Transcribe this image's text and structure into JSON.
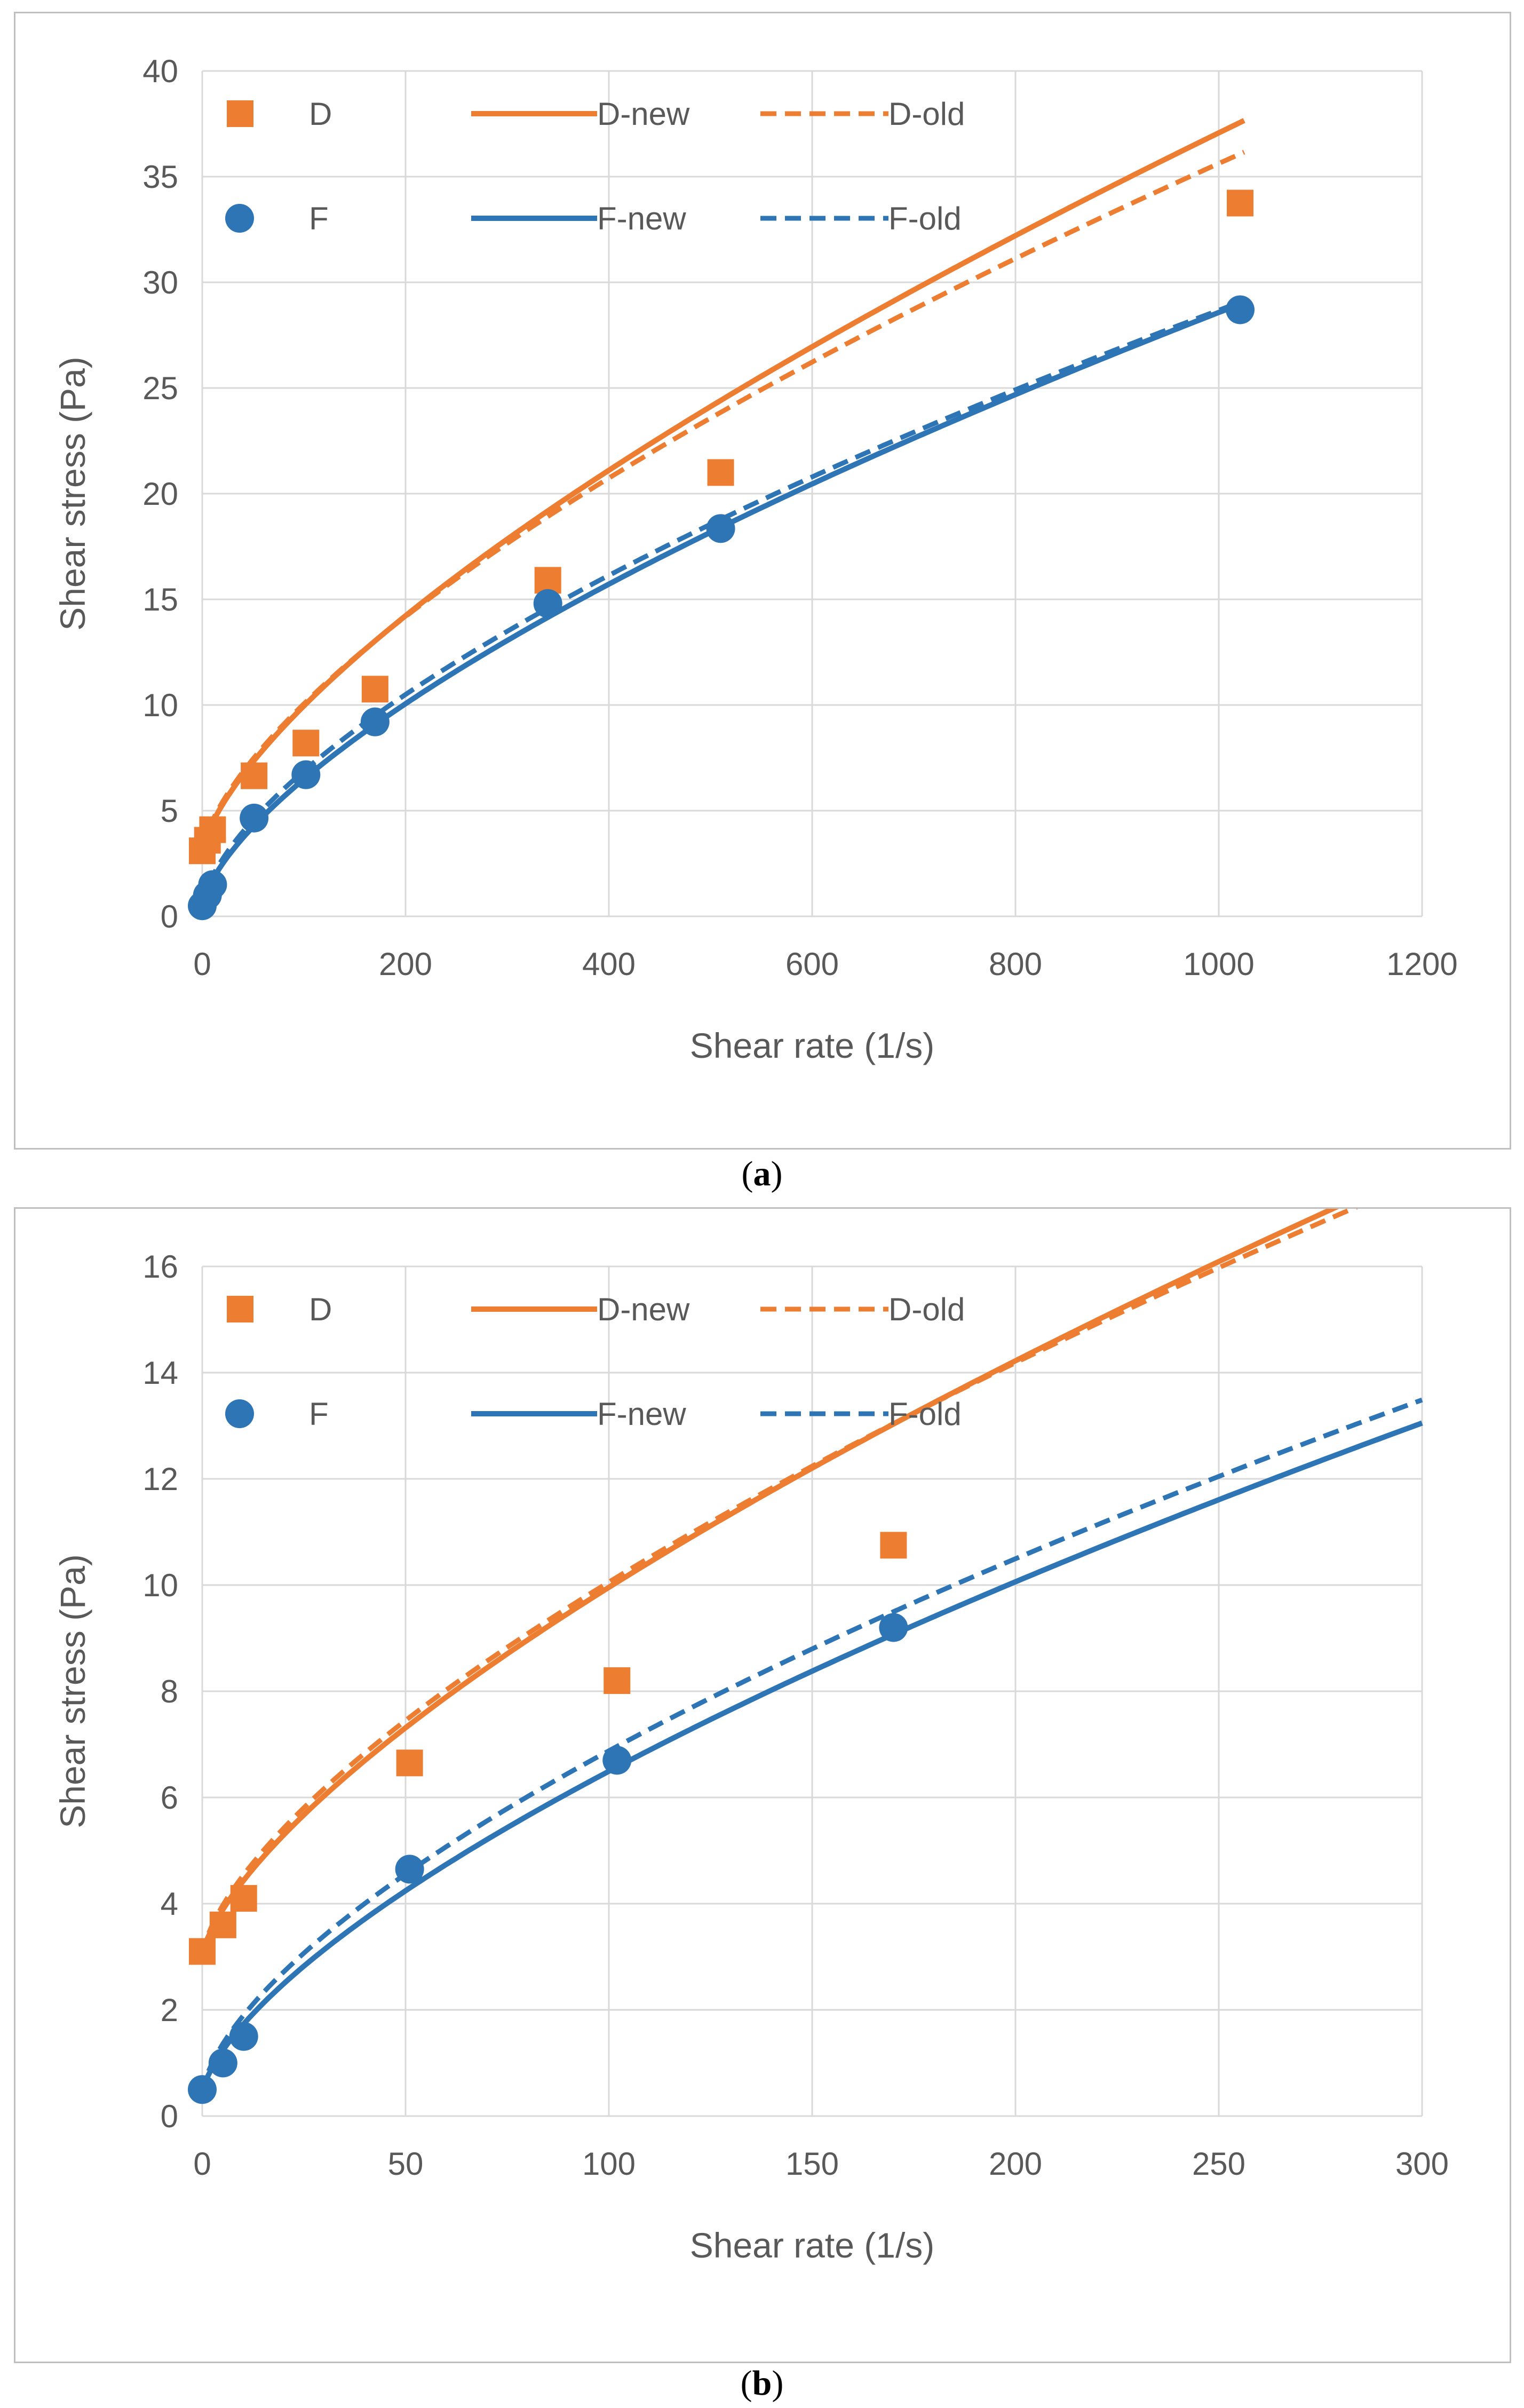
{
  "colors": {
    "D": "#ed7d31",
    "F": "#2e75b6",
    "grid": "#d9d9d9",
    "text": "#595959"
  },
  "chart_data": [
    {
      "type": "scatter",
      "caption_label": "a",
      "xlabel": "Shear rate (1/s)",
      "ylabel": "Shear stress (Pa)",
      "xlim": [
        0,
        1200
      ],
      "ylim": [
        0,
        40
      ],
      "xticks": [
        0,
        200,
        400,
        600,
        800,
        1000,
        1200
      ],
      "yticks": [
        0,
        5,
        10,
        15,
        20,
        25,
        30,
        35,
        40
      ],
      "xticklabels": [
        "0",
        "200",
        "400",
        "600",
        "800",
        "1000",
        "1200"
      ],
      "yticklabels": [
        "0",
        "5",
        "10",
        "15",
        "20",
        "25",
        "30",
        "35",
        "40"
      ],
      "legend": {
        "D": "D",
        "F": "F",
        "D_new": "D-new",
        "D_old": "D-old",
        "F_new": "F-new",
        "F_old": "F-old"
      },
      "series": [
        {
          "name": "D",
          "kind": "points",
          "marker": "square",
          "x": [
            0,
            5.1,
            10.2,
            51,
            102,
            170,
            340,
            510,
            1021
          ],
          "y": [
            3.1,
            3.6,
            4.1,
            6.65,
            8.2,
            10.75,
            15.9,
            21.0,
            33.75
          ]
        },
        {
          "name": "F",
          "kind": "points",
          "marker": "circle",
          "x": [
            0,
            5.1,
            10.2,
            51,
            102,
            170,
            340,
            510,
            1021
          ],
          "y": [
            0.5,
            1.0,
            1.5,
            4.65,
            6.7,
            9.2,
            14.8,
            18.35,
            28.7
          ]
        },
        {
          "name": "D-new",
          "kind": "line",
          "dash": false,
          "model": {
            "tau0": 3.0,
            "k": 0.29,
            "n": 0.69
          },
          "xmax": 1025
        },
        {
          "name": "D-old",
          "kind": "line",
          "dash": true,
          "model": {
            "tau0": 3.0,
            "k": 0.33,
            "n": 0.665
          },
          "xmax": 1025
        },
        {
          "name": "F-new",
          "kind": "line",
          "dash": false,
          "model": {
            "tau0": 0.4,
            "k": 0.285,
            "n": 0.665
          },
          "xmax": 1025
        },
        {
          "name": "F-old",
          "kind": "line",
          "dash": true,
          "model": {
            "tau0": 0.4,
            "k": 0.34,
            "n": 0.64
          },
          "xmax": 1025
        }
      ]
    },
    {
      "type": "scatter",
      "caption_label": "b",
      "xlabel": "Shear rate (1/s)",
      "ylabel": "Shear stress (Pa)",
      "xlim": [
        0,
        300
      ],
      "ylim": [
        0,
        16
      ],
      "xticks": [
        0,
        50,
        100,
        150,
        200,
        250,
        300
      ],
      "yticks": [
        0,
        2,
        4,
        6,
        8,
        10,
        12,
        14,
        16
      ],
      "xticklabels": [
        "0",
        "50",
        "100",
        "150",
        "200",
        "250",
        "300"
      ],
      "yticklabels": [
        "0",
        "2",
        "4",
        "6",
        "8",
        "10",
        "12",
        "14",
        "16"
      ],
      "legend": {
        "D": "D",
        "F": "F",
        "D_new": "D-new",
        "D_old": "D-old",
        "F_new": "F-new",
        "F_old": "F-old"
      },
      "series": [
        {
          "name": "D",
          "kind": "points",
          "marker": "square",
          "x": [
            0,
            5.1,
            10.2,
            51,
            102,
            170
          ],
          "y": [
            3.1,
            3.6,
            4.1,
            6.65,
            8.2,
            10.75
          ]
        },
        {
          "name": "F",
          "kind": "points",
          "marker": "circle",
          "x": [
            0,
            5.1,
            10.2,
            51,
            102,
            170
          ],
          "y": [
            0.5,
            1.0,
            1.5,
            4.65,
            6.7,
            9.2
          ]
        },
        {
          "name": "D-new",
          "kind": "line",
          "dash": false,
          "model": {
            "tau0": 3.0,
            "k": 0.29,
            "n": 0.69
          },
          "xmax": 300
        },
        {
          "name": "D-old",
          "kind": "line",
          "dash": true,
          "model": {
            "tau0": 3.0,
            "k": 0.33,
            "n": 0.665
          },
          "xmax": 300
        },
        {
          "name": "F-new",
          "kind": "line",
          "dash": false,
          "model": {
            "tau0": 0.4,
            "k": 0.285,
            "n": 0.665
          },
          "xmax": 300
        },
        {
          "name": "F-old",
          "kind": "line",
          "dash": true,
          "model": {
            "tau0": 0.4,
            "k": 0.34,
            "n": 0.64
          },
          "xmax": 300
        }
      ]
    }
  ]
}
